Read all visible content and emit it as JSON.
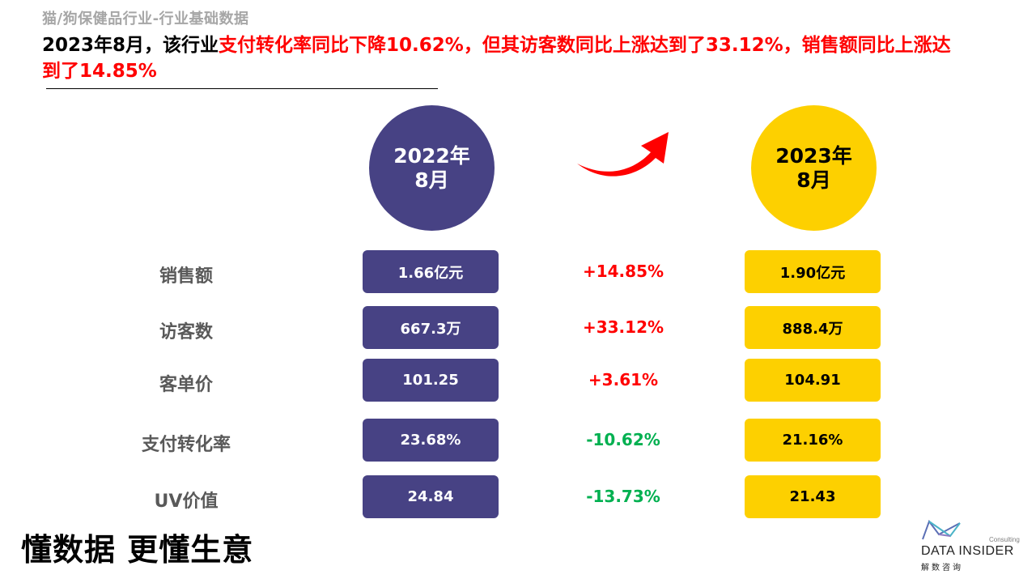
{
  "header": {
    "category": "猫/狗保健品行业-行业基础数据",
    "headline_black": "2023年8月，该行业",
    "headline_red": "支付转化率同比下降10.62%，但其访客数同比上涨达到了33.12%，销售额同比上涨达到了14.85%"
  },
  "periods": {
    "left": {
      "line1": "2022年",
      "line2": "8月",
      "color": "#474284"
    },
    "right": {
      "line1": "2023年",
      "line2": "8月",
      "color": "#fdd000"
    }
  },
  "metrics": [
    {
      "label": "销售额",
      "value_2022": "1.66亿元",
      "change": "+14.85%",
      "direction": "up",
      "value_2023": "1.90亿元"
    },
    {
      "label": "访客数",
      "value_2022": "667.3万",
      "change": "+33.12%",
      "direction": "up",
      "value_2023": "888.4万"
    },
    {
      "label": "客单价",
      "value_2022": "101.25",
      "change": "+3.61%",
      "direction": "up",
      "value_2023": "104.91"
    },
    {
      "label": "支付转化率",
      "value_2022": "23.68%",
      "change": "-10.62%",
      "direction": "down",
      "value_2023": "21.16%"
    },
    {
      "label": "UV价值",
      "value_2022": "24.84",
      "change": "-13.73%",
      "direction": "down",
      "value_2023": "21.43"
    }
  ],
  "colors": {
    "up": "#ff0000",
    "down": "#00b050",
    "arrow": "#ff0000"
  },
  "icons": {
    "arrow": "curved-arrow-up-right-icon",
    "logo": "data-insider-logo-icon"
  },
  "footer": {
    "slogan": "懂数据 更懂生意",
    "logo_consulting": "Consulting",
    "logo_name": "DATA INSIDER",
    "logo_cn": "解数咨询"
  }
}
